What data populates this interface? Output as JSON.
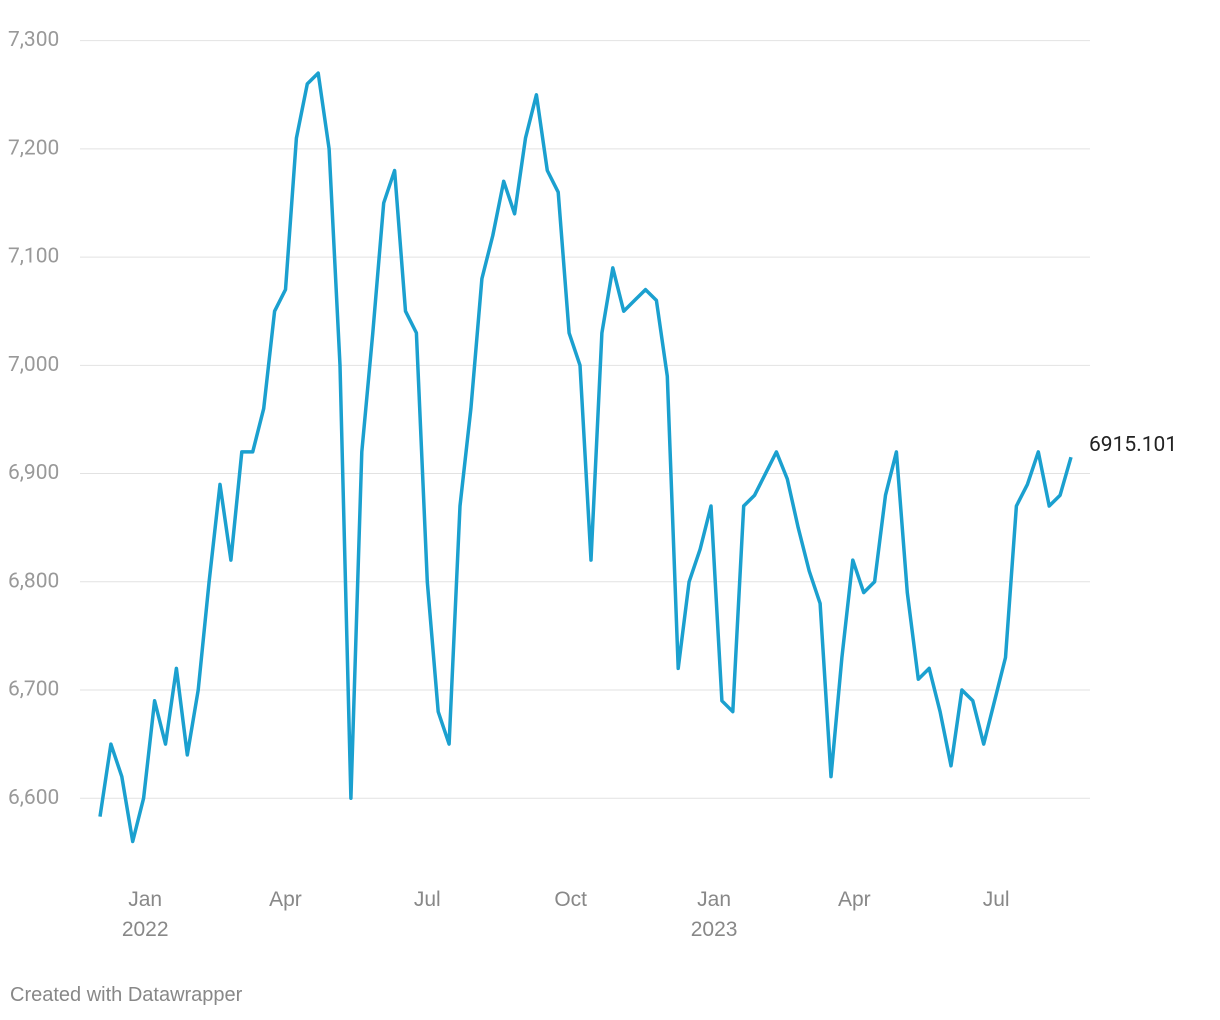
{
  "chart_data": {
    "type": "line",
    "credit": "Created with Datawrapper",
    "x": [
      "2021-12-03",
      "2021-12-10",
      "2021-12-17",
      "2021-12-24",
      "2021-12-31",
      "2022-01-07",
      "2022-01-14",
      "2022-01-21",
      "2022-01-28",
      "2022-02-04",
      "2022-02-11",
      "2022-02-18",
      "2022-02-25",
      "2022-03-04",
      "2022-03-11",
      "2022-03-18",
      "2022-03-25",
      "2022-04-01",
      "2022-04-08",
      "2022-04-15",
      "2022-04-22",
      "2022-04-29",
      "2022-05-06",
      "2022-05-13",
      "2022-05-20",
      "2022-05-27",
      "2022-06-03",
      "2022-06-10",
      "2022-06-17",
      "2022-06-24",
      "2022-07-01",
      "2022-07-08",
      "2022-07-15",
      "2022-07-22",
      "2022-07-29",
      "2022-08-05",
      "2022-08-12",
      "2022-08-19",
      "2022-08-26",
      "2022-09-02",
      "2022-09-09",
      "2022-09-16",
      "2022-09-23",
      "2022-09-30",
      "2022-10-07",
      "2022-10-14",
      "2022-10-21",
      "2022-10-28",
      "2022-11-04",
      "2022-11-11",
      "2022-11-18",
      "2022-11-25",
      "2022-12-02",
      "2022-12-09",
      "2022-12-16",
      "2022-12-23",
      "2022-12-30",
      "2023-01-06",
      "2023-01-13",
      "2023-01-20",
      "2023-01-27",
      "2023-02-03",
      "2023-02-10",
      "2023-02-17",
      "2023-02-24",
      "2023-03-03",
      "2023-03-10",
      "2023-03-17",
      "2023-03-24",
      "2023-03-31",
      "2023-04-07",
      "2023-04-14",
      "2023-04-21",
      "2023-04-28",
      "2023-05-05",
      "2023-05-12",
      "2023-05-19",
      "2023-05-26",
      "2023-06-02",
      "2023-06-09",
      "2023-06-16",
      "2023-06-23",
      "2023-06-30",
      "2023-07-07",
      "2023-07-14",
      "2023-07-21",
      "2023-07-28",
      "2023-08-04",
      "2023-08-11",
      "2023-08-18"
    ],
    "series": [
      {
        "color": "#1ba0cf",
        "values": [
          6583,
          6650,
          6620,
          6560,
          6600,
          6690,
          6650,
          6720,
          6640,
          6700,
          6800,
          6890,
          6820,
          6920,
          6920,
          6960,
          7050,
          7070,
          7210,
          7260,
          7270,
          7200,
          7000,
          6600,
          6920,
          7030,
          7150,
          7180,
          7050,
          7030,
          6800,
          6680,
          6650,
          6870,
          6960,
          7080,
          7120,
          7170,
          7140,
          7210,
          7250,
          7180,
          7160,
          7030,
          7000,
          6820,
          7030,
          7090,
          7050,
          7060,
          7070,
          7060,
          6990,
          6720,
          6800,
          6830,
          6870,
          6690,
          6680,
          6870,
          6880,
          6900,
          6920,
          6895,
          6850,
          6810,
          6780,
          6620,
          6730,
          6820,
          6790,
          6800,
          6880,
          6920,
          6790,
          6710,
          6720,
          6680,
          6630,
          6700,
          6690,
          6650,
          6690,
          6730,
          6870,
          6890,
          6920,
          6870,
          6880,
          6915.101
        ]
      }
    ],
    "xlim": [
      "2021-12-03",
      "2023-08-18"
    ],
    "xticks": [
      {
        "value": "2022-01-01",
        "label": "Jan\n2022"
      },
      {
        "value": "2022-04-01",
        "label": "Apr"
      },
      {
        "value": "2022-07-01",
        "label": "Jul"
      },
      {
        "value": "2022-10-01",
        "label": "Oct"
      },
      {
        "value": "2023-01-01",
        "label": "Jan\n2023"
      },
      {
        "value": "2023-04-01",
        "label": "Apr"
      },
      {
        "value": "2023-07-01",
        "label": "Jul"
      }
    ],
    "ylim": [
      6530,
      7320
    ],
    "yticks": [
      {
        "value": 6600,
        "label": "6,600"
      },
      {
        "value": 6700,
        "label": "6,700"
      },
      {
        "value": 6800,
        "label": "6,800"
      },
      {
        "value": 6900,
        "label": "6,900"
      },
      {
        "value": 7000,
        "label": "7,000"
      },
      {
        "value": 7100,
        "label": "7,100"
      },
      {
        "value": 7200,
        "label": "7,200"
      },
      {
        "value": 7300,
        "label": "7,300"
      }
    ],
    "grid": true
  }
}
